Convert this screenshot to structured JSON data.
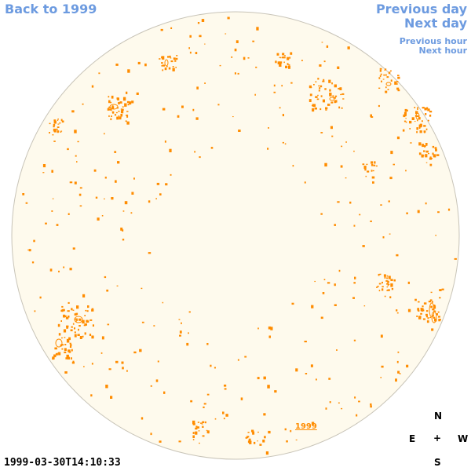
{
  "nav": {
    "back_label": "Back to 1999",
    "previous_day_label": "Previous day",
    "next_day_label": "Next day",
    "previous_hour_label": "Previous hour",
    "next_hour_label": "Next hour"
  },
  "timestamp": "1999-03-30T14:10:33",
  "year_label": "1999",
  "compass": {
    "north": "N",
    "east": "E",
    "center": "+",
    "west": "W",
    "south": "S"
  },
  "colors": {
    "link": "#6d9be0",
    "disk_fill": "#fefaed",
    "disk_edge": "#c8c4b8",
    "feature": "#ff8c00"
  }
}
